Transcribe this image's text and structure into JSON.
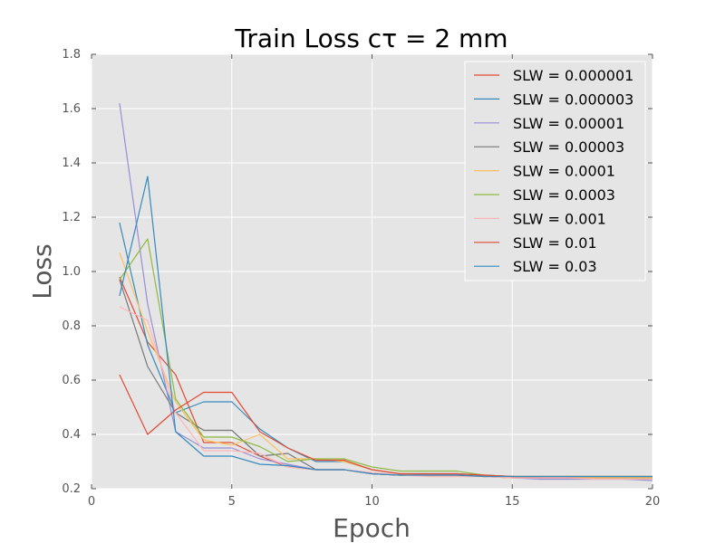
{
  "chart_data": {
    "type": "line",
    "title": "Train Loss cτ = 2 mm",
    "xlabel": "Epoch",
    "ylabel": "Loss",
    "xlim": [
      0,
      20
    ],
    "ylim": [
      0.2,
      1.8
    ],
    "xticks": [
      0,
      5,
      10,
      15,
      20
    ],
    "yticks": [
      0.2,
      0.4,
      0.6,
      0.8,
      1.0,
      1.2,
      1.4,
      1.6,
      1.8
    ],
    "grid": true,
    "legend_position": "top-right",
    "x": [
      1,
      2,
      3,
      4,
      5,
      6,
      7,
      8,
      9,
      10,
      11,
      12,
      13,
      14,
      15,
      16,
      17,
      18,
      19,
      20
    ],
    "series": [
      {
        "name": "SLW = 0.000001",
        "color": "#E24A33",
        "values": [
          0.98,
          0.74,
          0.62,
          0.37,
          0.37,
          0.32,
          0.28,
          0.27,
          0.27,
          0.255,
          0.25,
          0.25,
          0.25,
          0.245,
          0.24,
          0.24,
          0.24,
          0.24,
          0.24,
          0.24
        ]
      },
      {
        "name": "SLW = 0.000003",
        "color": "#348ABD",
        "values": [
          1.18,
          0.73,
          0.48,
          0.52,
          0.52,
          0.42,
          0.35,
          0.3,
          0.3,
          0.27,
          0.255,
          0.255,
          0.255,
          0.25,
          0.245,
          0.24,
          0.24,
          0.24,
          0.24,
          0.24
        ]
      },
      {
        "name": "SLW = 0.00001",
        "color": "#988ED5",
        "values": [
          1.62,
          0.88,
          0.41,
          0.35,
          0.35,
          0.31,
          0.29,
          0.27,
          0.27,
          0.255,
          0.25,
          0.25,
          0.25,
          0.245,
          0.24,
          0.235,
          0.235,
          0.235,
          0.235,
          0.23
        ]
      },
      {
        "name": "SLW = 0.00003",
        "color": "#777777",
        "values": [
          0.97,
          0.65,
          0.48,
          0.415,
          0.415,
          0.32,
          0.33,
          0.27,
          0.27,
          0.255,
          0.25,
          0.25,
          0.25,
          0.245,
          0.245,
          0.24,
          0.24,
          0.24,
          0.24,
          0.24
        ]
      },
      {
        "name": "SLW = 0.0001",
        "color": "#FBC15E",
        "values": [
          1.07,
          0.78,
          0.52,
          0.38,
          0.36,
          0.4,
          0.31,
          0.31,
          0.3,
          0.27,
          0.255,
          0.245,
          0.245,
          0.245,
          0.24,
          0.24,
          0.24,
          0.24,
          0.24,
          0.24
        ]
      },
      {
        "name": "SLW = 0.0003",
        "color": "#8EBA42",
        "values": [
          0.97,
          1.12,
          0.53,
          0.39,
          0.39,
          0.355,
          0.3,
          0.31,
          0.31,
          0.28,
          0.265,
          0.265,
          0.265,
          0.25,
          0.245,
          0.245,
          0.245,
          0.245,
          0.245,
          0.245
        ]
      },
      {
        "name": "SLW = 0.001",
        "color": "#FFB5B8",
        "values": [
          0.87,
          0.82,
          0.48,
          0.34,
          0.34,
          0.33,
          0.28,
          0.27,
          0.27,
          0.26,
          0.25,
          0.245,
          0.245,
          0.245,
          0.24,
          0.24,
          0.24,
          0.235,
          0.235,
          0.235
        ]
      },
      {
        "name": "SLW = 0.01",
        "color": "#E24A33",
        "values": [
          0.62,
          0.4,
          0.49,
          0.555,
          0.555,
          0.41,
          0.35,
          0.305,
          0.305,
          0.27,
          0.255,
          0.255,
          0.255,
          0.25,
          0.245,
          0.245,
          0.245,
          0.245,
          0.245,
          0.245
        ]
      },
      {
        "name": "SLW = 0.03",
        "color": "#348ABD",
        "values": [
          0.91,
          1.35,
          0.41,
          0.32,
          0.32,
          0.29,
          0.285,
          0.27,
          0.27,
          0.255,
          0.25,
          0.25,
          0.25,
          0.245,
          0.245,
          0.245,
          0.245,
          0.245,
          0.245,
          0.245
        ]
      }
    ]
  }
}
